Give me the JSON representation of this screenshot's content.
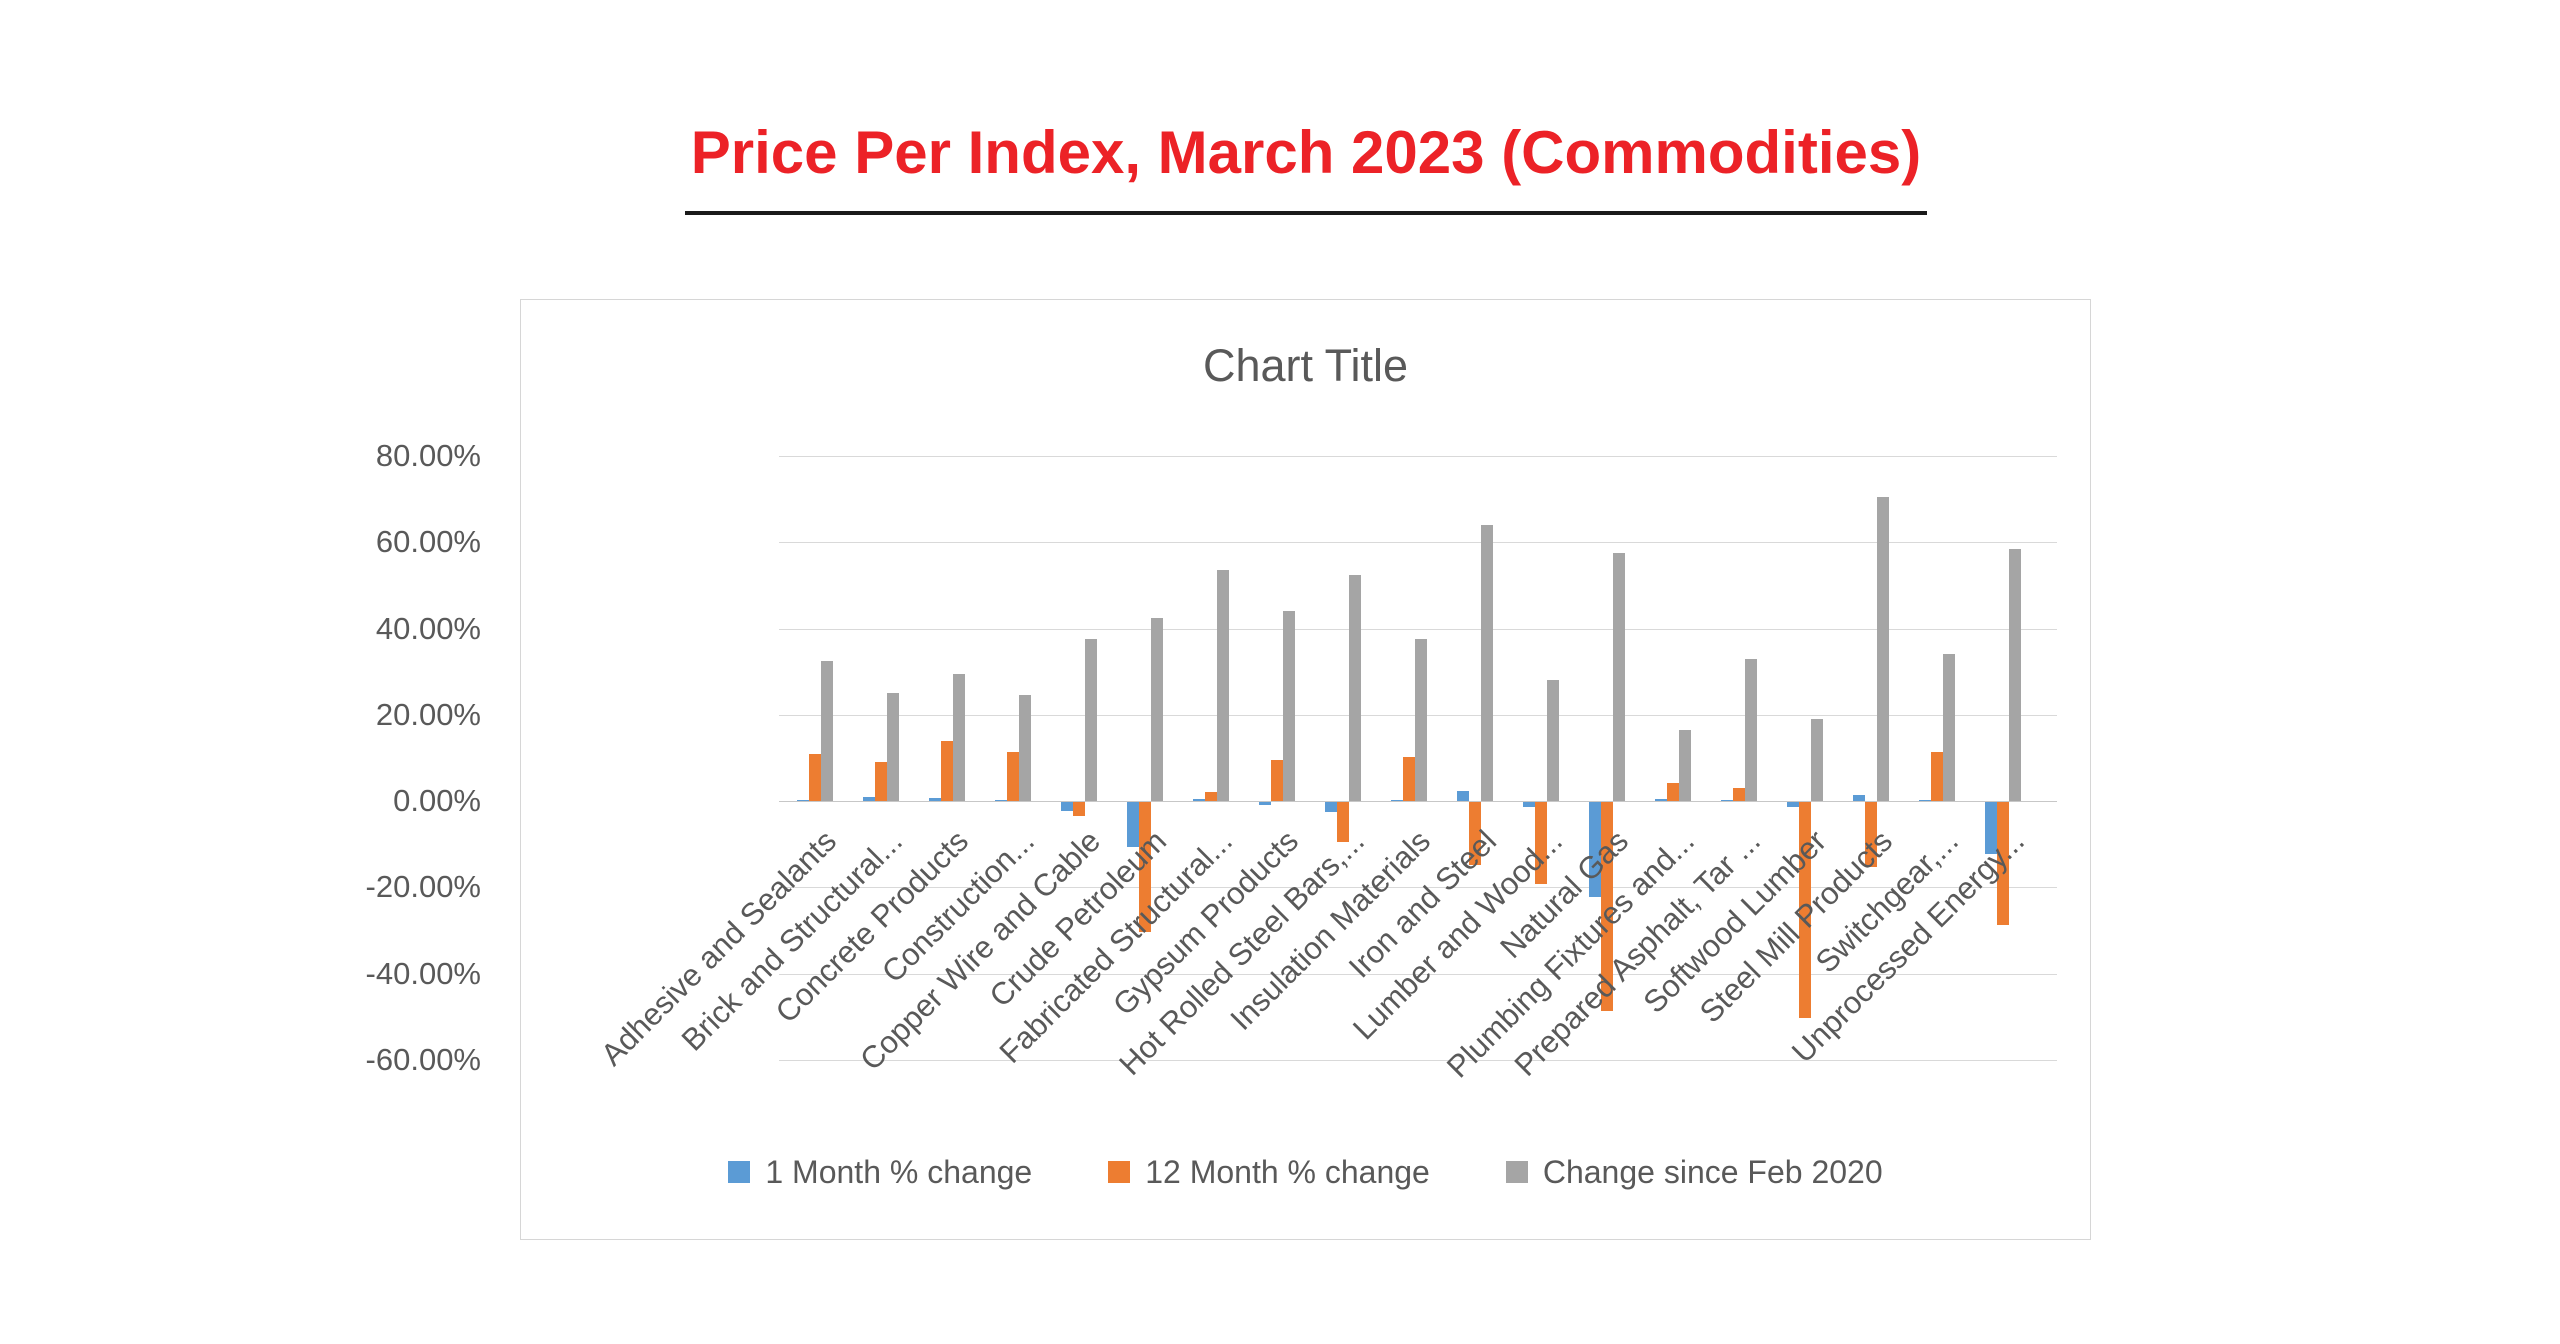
{
  "page": {
    "title": "Price Per Index, March 2023 (Commodities)"
  },
  "theme": {
    "title_color": "#EC2227",
    "underline_color": "#1a1a1a",
    "text_color": "#595959",
    "grid_color": "#d9d9d9",
    "series_blue": "#5B9BD5",
    "series_orange": "#ED7D31",
    "series_gray": "#A5A5A5"
  },
  "chart_data": {
    "type": "bar",
    "title": "Chart Title",
    "xlabel": "",
    "ylabel": "",
    "ylim": [
      -60,
      80
    ],
    "ytick_step": 20,
    "ytick_format": "percent-2-decimals",
    "grid": true,
    "legend_position": "bottom",
    "categories": [
      "Adhesive and Sealants",
      "Brick and Structural...",
      "Concrete Products",
      "Construction...",
      "Copper Wire and Cable",
      "Crude Petroleum",
      "Fabricated Structural...",
      "Gypsum Products",
      "Hot Rolled Steel Bars,...",
      "Insulation Materials",
      "Iron and Steel",
      "Lumber and Wood...",
      "Natural Gas",
      "Plumbing Fixtures and...",
      "Prepared Asphalt, Tar ...",
      "Softwood Lumber",
      "Steel Mill Products",
      "Switchgear,...",
      "Unprocessed Energy..."
    ],
    "series": [
      {
        "name": "1 Month % change",
        "color": "#5B9BD5",
        "values": [
          0.1,
          0.9,
          0.8,
          0.1,
          -2.0,
          -10.5,
          0.6,
          -0.6,
          -2.3,
          0.1,
          2.4,
          -1.1,
          -22.0,
          0.5,
          0.1,
          -1.1,
          1.5,
          0.1,
          -12.0
        ]
      },
      {
        "name": "12 Month % change",
        "color": "#ED7D31",
        "values": [
          11.0,
          9.0,
          14.0,
          11.5,
          -3.2,
          -30.0,
          2.0,
          9.6,
          -9.3,
          10.2,
          -14.5,
          -19.0,
          -48.5,
          4.2,
          3.0,
          -50.0,
          -15.0,
          11.5,
          -28.5
        ]
      },
      {
        "name": "Change since Feb 2020",
        "color": "#A5A5A5",
        "values": [
          32.5,
          25.0,
          29.5,
          24.5,
          37.5,
          42.5,
          53.5,
          44.0,
          52.5,
          37.5,
          64.0,
          28.0,
          57.5,
          16.5,
          33.0,
          19.0,
          70.5,
          34.0,
          58.5
        ]
      }
    ]
  }
}
